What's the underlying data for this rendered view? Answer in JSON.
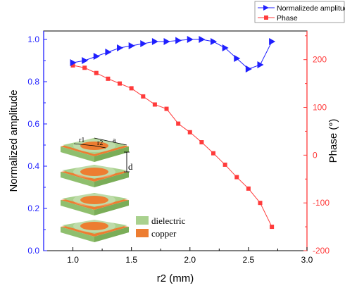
{
  "colors": {
    "amplitude": "#1f1fff",
    "phase": "#ff3b3b",
    "dielectric": "#a9d18e",
    "copper": "#ed7d31",
    "axis": "#000000"
  },
  "chart_data": {
    "type": "line",
    "xlabel": "r2 (mm)",
    "ylabel_left": "Normalized amplitude",
    "ylabel_right": "Phase (°)",
    "xlim": [
      0.75,
      3.0
    ],
    "ylim_left": [
      0.0,
      1.04
    ],
    "ylim_right": [
      -200,
      260
    ],
    "x_ticks": [
      "1.0",
      "1.5",
      "2.0",
      "2.5",
      "3.0"
    ],
    "y_left_ticks": [
      "0.0",
      "0.2",
      "0.4",
      "0.6",
      "0.8",
      "1.0"
    ],
    "y_right_ticks": [
      "-200",
      "-100",
      "0",
      "100",
      "200"
    ],
    "legend_position": "top-right",
    "series": [
      {
        "name": "Normalizede amplitude",
        "axis": "left",
        "marker": "triangle-right",
        "x": [
          1.0,
          1.1,
          1.2,
          1.3,
          1.4,
          1.5,
          1.6,
          1.7,
          1.8,
          1.9,
          2.0,
          2.1,
          2.2,
          2.3,
          2.4,
          2.5,
          2.6,
          2.7
        ],
        "values": [
          0.89,
          0.9,
          0.92,
          0.94,
          0.96,
          0.97,
          0.98,
          0.99,
          0.99,
          0.995,
          1.0,
          1.0,
          0.99,
          0.96,
          0.91,
          0.86,
          0.88,
          0.99
        ]
      },
      {
        "name": "Phase",
        "axis": "right",
        "marker": "square",
        "x": [
          1.0,
          1.1,
          1.2,
          1.3,
          1.4,
          1.5,
          1.6,
          1.7,
          1.8,
          1.9,
          2.0,
          2.1,
          2.2,
          2.3,
          2.4,
          2.5,
          2.6,
          2.7
        ],
        "values": [
          188,
          183,
          172,
          160,
          150,
          140,
          123,
          106,
          97,
          66,
          48,
          27,
          4,
          -20,
          -46,
          -70,
          -100,
          -150
        ]
      }
    ]
  },
  "inset": {
    "labels": {
      "r1": "r1",
      "r2": "r2",
      "a": "a",
      "d": "d",
      "dielectric": "dielectric",
      "copper": "copper"
    }
  }
}
